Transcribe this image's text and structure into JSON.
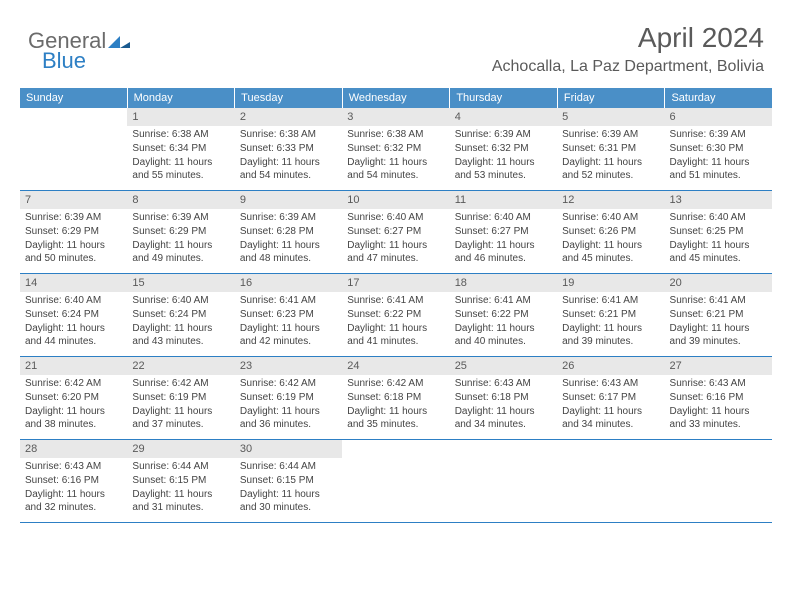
{
  "brand": {
    "word1": "General",
    "word2": "Blue"
  },
  "header": {
    "month_year": "April 2024",
    "location": "Achocalla, La Paz Department, Bolivia"
  },
  "colors": {
    "header_blue": "#4a8fc7",
    "logo_blue": "#2d7fc4",
    "text_gray": "#5a5a5a",
    "cell_header_bg": "#e8e8e8",
    "border_blue": "#2d7fc4"
  },
  "day_names": [
    "Sunday",
    "Monday",
    "Tuesday",
    "Wednesday",
    "Thursday",
    "Friday",
    "Saturday"
  ],
  "weeks": [
    [
      {
        "empty": true
      },
      {
        "num": "1",
        "sunrise": "Sunrise: 6:38 AM",
        "sunset": "Sunset: 6:34 PM",
        "daylight": "Daylight: 11 hours and 55 minutes."
      },
      {
        "num": "2",
        "sunrise": "Sunrise: 6:38 AM",
        "sunset": "Sunset: 6:33 PM",
        "daylight": "Daylight: 11 hours and 54 minutes."
      },
      {
        "num": "3",
        "sunrise": "Sunrise: 6:38 AM",
        "sunset": "Sunset: 6:32 PM",
        "daylight": "Daylight: 11 hours and 54 minutes."
      },
      {
        "num": "4",
        "sunrise": "Sunrise: 6:39 AM",
        "sunset": "Sunset: 6:32 PM",
        "daylight": "Daylight: 11 hours and 53 minutes."
      },
      {
        "num": "5",
        "sunrise": "Sunrise: 6:39 AM",
        "sunset": "Sunset: 6:31 PM",
        "daylight": "Daylight: 11 hours and 52 minutes."
      },
      {
        "num": "6",
        "sunrise": "Sunrise: 6:39 AM",
        "sunset": "Sunset: 6:30 PM",
        "daylight": "Daylight: 11 hours and 51 minutes."
      }
    ],
    [
      {
        "num": "7",
        "sunrise": "Sunrise: 6:39 AM",
        "sunset": "Sunset: 6:29 PM",
        "daylight": "Daylight: 11 hours and 50 minutes."
      },
      {
        "num": "8",
        "sunrise": "Sunrise: 6:39 AM",
        "sunset": "Sunset: 6:29 PM",
        "daylight": "Daylight: 11 hours and 49 minutes."
      },
      {
        "num": "9",
        "sunrise": "Sunrise: 6:39 AM",
        "sunset": "Sunset: 6:28 PM",
        "daylight": "Daylight: 11 hours and 48 minutes."
      },
      {
        "num": "10",
        "sunrise": "Sunrise: 6:40 AM",
        "sunset": "Sunset: 6:27 PM",
        "daylight": "Daylight: 11 hours and 47 minutes."
      },
      {
        "num": "11",
        "sunrise": "Sunrise: 6:40 AM",
        "sunset": "Sunset: 6:27 PM",
        "daylight": "Daylight: 11 hours and 46 minutes."
      },
      {
        "num": "12",
        "sunrise": "Sunrise: 6:40 AM",
        "sunset": "Sunset: 6:26 PM",
        "daylight": "Daylight: 11 hours and 45 minutes."
      },
      {
        "num": "13",
        "sunrise": "Sunrise: 6:40 AM",
        "sunset": "Sunset: 6:25 PM",
        "daylight": "Daylight: 11 hours and 45 minutes."
      }
    ],
    [
      {
        "num": "14",
        "sunrise": "Sunrise: 6:40 AM",
        "sunset": "Sunset: 6:24 PM",
        "daylight": "Daylight: 11 hours and 44 minutes."
      },
      {
        "num": "15",
        "sunrise": "Sunrise: 6:40 AM",
        "sunset": "Sunset: 6:24 PM",
        "daylight": "Daylight: 11 hours and 43 minutes."
      },
      {
        "num": "16",
        "sunrise": "Sunrise: 6:41 AM",
        "sunset": "Sunset: 6:23 PM",
        "daylight": "Daylight: 11 hours and 42 minutes."
      },
      {
        "num": "17",
        "sunrise": "Sunrise: 6:41 AM",
        "sunset": "Sunset: 6:22 PM",
        "daylight": "Daylight: 11 hours and 41 minutes."
      },
      {
        "num": "18",
        "sunrise": "Sunrise: 6:41 AM",
        "sunset": "Sunset: 6:22 PM",
        "daylight": "Daylight: 11 hours and 40 minutes."
      },
      {
        "num": "19",
        "sunrise": "Sunrise: 6:41 AM",
        "sunset": "Sunset: 6:21 PM",
        "daylight": "Daylight: 11 hours and 39 minutes."
      },
      {
        "num": "20",
        "sunrise": "Sunrise: 6:41 AM",
        "sunset": "Sunset: 6:21 PM",
        "daylight": "Daylight: 11 hours and 39 minutes."
      }
    ],
    [
      {
        "num": "21",
        "sunrise": "Sunrise: 6:42 AM",
        "sunset": "Sunset: 6:20 PM",
        "daylight": "Daylight: 11 hours and 38 minutes."
      },
      {
        "num": "22",
        "sunrise": "Sunrise: 6:42 AM",
        "sunset": "Sunset: 6:19 PM",
        "daylight": "Daylight: 11 hours and 37 minutes."
      },
      {
        "num": "23",
        "sunrise": "Sunrise: 6:42 AM",
        "sunset": "Sunset: 6:19 PM",
        "daylight": "Daylight: 11 hours and 36 minutes."
      },
      {
        "num": "24",
        "sunrise": "Sunrise: 6:42 AM",
        "sunset": "Sunset: 6:18 PM",
        "daylight": "Daylight: 11 hours and 35 minutes."
      },
      {
        "num": "25",
        "sunrise": "Sunrise: 6:43 AM",
        "sunset": "Sunset: 6:18 PM",
        "daylight": "Daylight: 11 hours and 34 minutes."
      },
      {
        "num": "26",
        "sunrise": "Sunrise: 6:43 AM",
        "sunset": "Sunset: 6:17 PM",
        "daylight": "Daylight: 11 hours and 34 minutes."
      },
      {
        "num": "27",
        "sunrise": "Sunrise: 6:43 AM",
        "sunset": "Sunset: 6:16 PM",
        "daylight": "Daylight: 11 hours and 33 minutes."
      }
    ],
    [
      {
        "num": "28",
        "sunrise": "Sunrise: 6:43 AM",
        "sunset": "Sunset: 6:16 PM",
        "daylight": "Daylight: 11 hours and 32 minutes."
      },
      {
        "num": "29",
        "sunrise": "Sunrise: 6:44 AM",
        "sunset": "Sunset: 6:15 PM",
        "daylight": "Daylight: 11 hours and 31 minutes."
      },
      {
        "num": "30",
        "sunrise": "Sunrise: 6:44 AM",
        "sunset": "Sunset: 6:15 PM",
        "daylight": "Daylight: 11 hours and 30 minutes."
      },
      {
        "empty": true
      },
      {
        "empty": true
      },
      {
        "empty": true
      },
      {
        "empty": true
      }
    ]
  ]
}
